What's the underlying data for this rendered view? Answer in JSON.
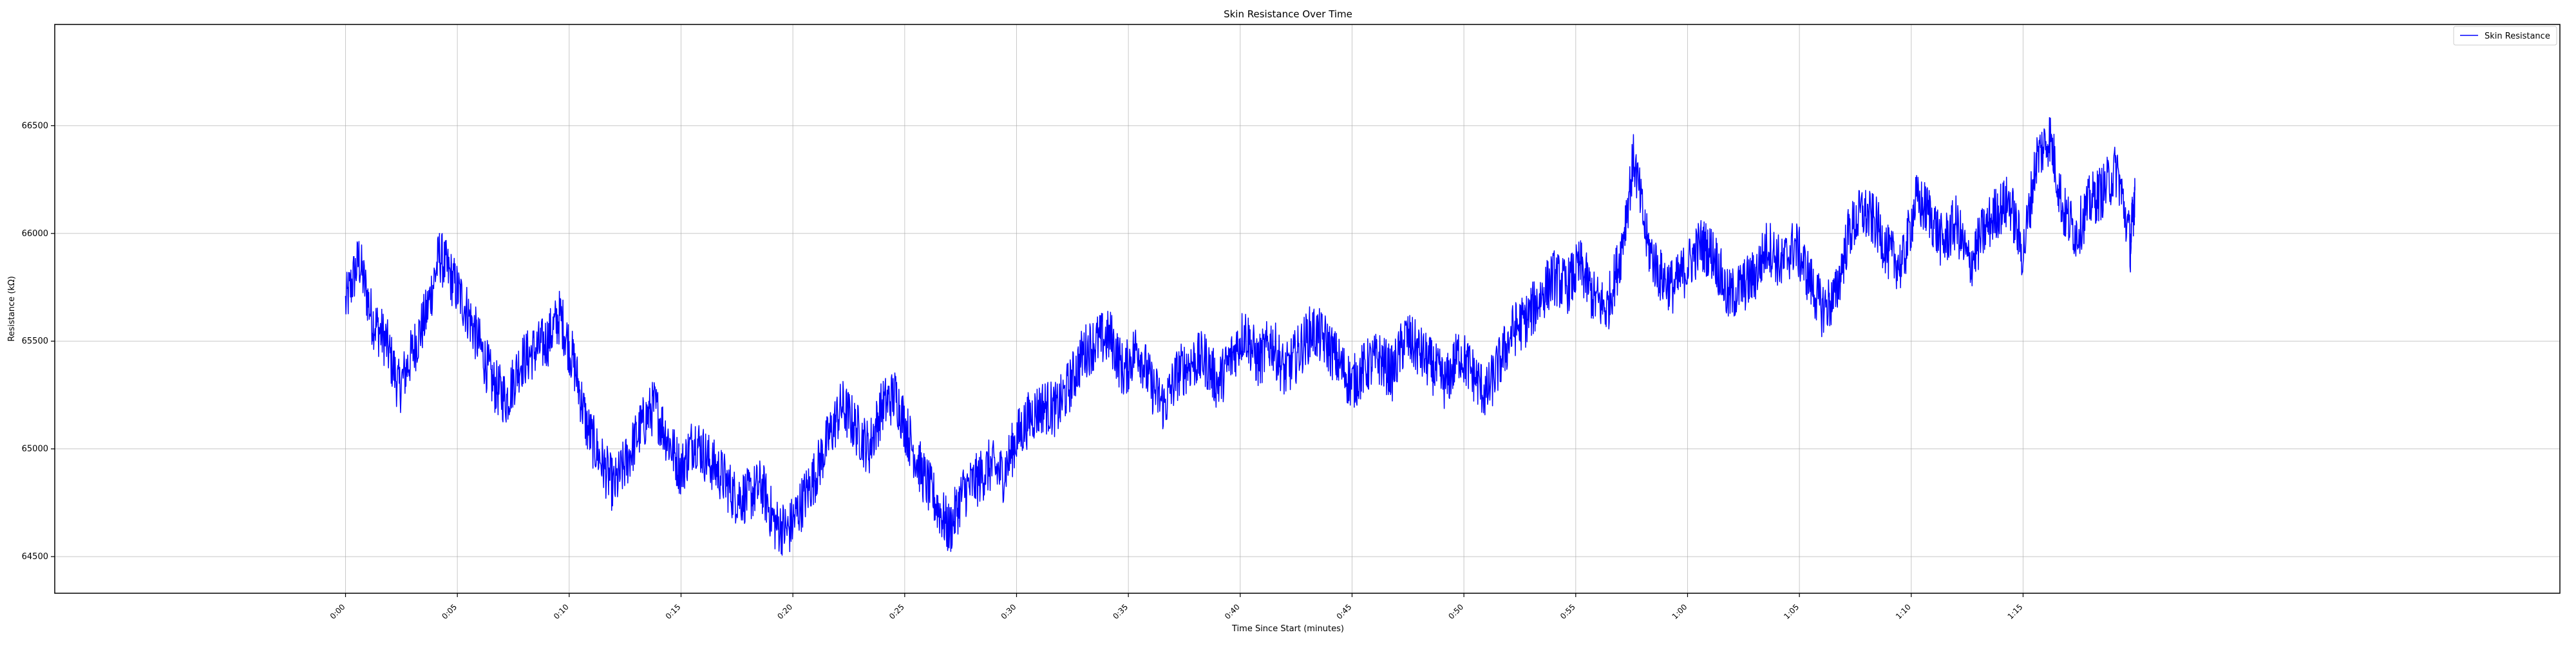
{
  "chart_data": {
    "type": "line",
    "title": "Skin Resistance Over Time",
    "xlabel": "Time Since Start (minutes)",
    "ylabel": "Resistance (kΩ)",
    "x_ticks": [
      "0:00",
      "0:05",
      "0:10",
      "0:15",
      "0:20",
      "0:25",
      "0:30",
      "0:35",
      "0:40",
      "0:45",
      "0:50",
      "0:55",
      "1:00",
      "1:05",
      "1:10",
      "1:15"
    ],
    "y_ticks": [
      64500,
      65000,
      65500,
      66000,
      66500
    ],
    "xlim": [
      -0.65,
      4.95
    ],
    "xlim_unit": "minutes",
    "ylim": [
      64330,
      66970
    ],
    "grid": true,
    "legend_position": "top-right",
    "series": [
      {
        "name": "Skin Resistance",
        "color": "#0000ff",
        "x_range": [
          0,
          4.0
        ],
        "x_unit": "minutes",
        "points": [
          [
            0.0,
            65670
          ],
          [
            0.03,
            65880
          ],
          [
            0.06,
            65600
          ],
          [
            0.09,
            65500
          ],
          [
            0.12,
            65280
          ],
          [
            0.15,
            65450
          ],
          [
            0.18,
            65620
          ],
          [
            0.21,
            65900
          ],
          [
            0.24,
            65780
          ],
          [
            0.27,
            65650
          ],
          [
            0.3,
            65480
          ],
          [
            0.33,
            65300
          ],
          [
            0.36,
            65230
          ],
          [
            0.39,
            65400
          ],
          [
            0.42,
            65450
          ],
          [
            0.45,
            65500
          ],
          [
            0.48,
            65620
          ],
          [
            0.51,
            65400
          ],
          [
            0.54,
            65100
          ],
          [
            0.57,
            64950
          ],
          [
            0.6,
            64820
          ],
          [
            0.63,
            64950
          ],
          [
            0.66,
            65100
          ],
          [
            0.69,
            65200
          ],
          [
            0.72,
            65050
          ],
          [
            0.75,
            64900
          ],
          [
            0.78,
            65050
          ],
          [
            0.81,
            64950
          ],
          [
            0.84,
            64880
          ],
          [
            0.87,
            64780
          ],
          [
            0.9,
            64780
          ],
          [
            0.93,
            64830
          ],
          [
            0.96,
            64650
          ],
          [
            0.99,
            64620
          ],
          [
            1.02,
            64750
          ],
          [
            1.05,
            64880
          ],
          [
            1.08,
            65050
          ],
          [
            1.11,
            65200
          ],
          [
            1.14,
            65100
          ],
          [
            1.17,
            65000
          ],
          [
            1.2,
            65200
          ],
          [
            1.23,
            65250
          ],
          [
            1.26,
            65050
          ],
          [
            1.29,
            64880
          ],
          [
            1.32,
            64750
          ],
          [
            1.35,
            64620
          ],
          [
            1.38,
            64800
          ],
          [
            1.41,
            64850
          ],
          [
            1.44,
            64920
          ],
          [
            1.47,
            64880
          ],
          [
            1.5,
            65050
          ],
          [
            1.53,
            65150
          ],
          [
            1.56,
            65200
          ],
          [
            1.59,
            65180
          ],
          [
            1.62,
            65300
          ],
          [
            1.65,
            65450
          ],
          [
            1.68,
            65500
          ],
          [
            1.71,
            65520
          ],
          [
            1.74,
            65350
          ],
          [
            1.77,
            65480
          ],
          [
            1.8,
            65300
          ],
          [
            1.83,
            65200
          ],
          [
            1.86,
            65350
          ],
          [
            1.89,
            65400
          ],
          [
            1.92,
            65420
          ],
          [
            1.95,
            65300
          ],
          [
            1.98,
            65420
          ],
          [
            2.01,
            65550
          ],
          [
            2.04,
            65400
          ],
          [
            2.07,
            65500
          ],
          [
            2.1,
            65350
          ],
          [
            2.13,
            65450
          ],
          [
            2.16,
            65550
          ],
          [
            2.19,
            65500
          ],
          [
            2.22,
            65400
          ],
          [
            2.25,
            65300
          ],
          [
            2.28,
            65380
          ],
          [
            2.31,
            65420
          ],
          [
            2.34,
            65350
          ],
          [
            2.37,
            65520
          ],
          [
            2.4,
            65450
          ],
          [
            2.43,
            65380
          ],
          [
            2.46,
            65300
          ],
          [
            2.49,
            65450
          ],
          [
            2.52,
            65350
          ],
          [
            2.55,
            65250
          ],
          [
            2.58,
            65400
          ],
          [
            2.61,
            65550
          ],
          [
            2.64,
            65600
          ],
          [
            2.67,
            65700
          ],
          [
            2.7,
            65800
          ],
          [
            2.73,
            65750
          ],
          [
            2.76,
            65850
          ],
          [
            2.79,
            65700
          ],
          [
            2.82,
            65650
          ],
          [
            2.85,
            65900
          ],
          [
            2.88,
            66350
          ],
          [
            2.91,
            65950
          ],
          [
            2.94,
            65800
          ],
          [
            2.97,
            65750
          ],
          [
            3.0,
            65850
          ],
          [
            3.03,
            65950
          ],
          [
            3.06,
            65900
          ],
          [
            3.09,
            65700
          ],
          [
            3.12,
            65750
          ],
          [
            3.15,
            65800
          ],
          [
            3.18,
            65950
          ],
          [
            3.21,
            65850
          ],
          [
            3.24,
            65950
          ],
          [
            3.27,
            65800
          ],
          [
            3.3,
            65650
          ],
          [
            3.33,
            65700
          ],
          [
            3.36,
            66000
          ],
          [
            3.39,
            66100
          ],
          [
            3.42,
            66050
          ],
          [
            3.45,
            65900
          ],
          [
            3.48,
            65850
          ],
          [
            3.51,
            66150
          ],
          [
            3.54,
            66100
          ],
          [
            3.57,
            65950
          ],
          [
            3.6,
            66050
          ],
          [
            3.63,
            65850
          ],
          [
            3.66,
            66000
          ],
          [
            3.69,
            66100
          ],
          [
            3.72,
            66150
          ],
          [
            3.75,
            65900
          ],
          [
            3.78,
            66350
          ],
          [
            3.81,
            66450
          ],
          [
            3.84,
            66100
          ],
          [
            3.87,
            66000
          ],
          [
            3.9,
            66150
          ],
          [
            3.93,
            66200
          ],
          [
            3.96,
            66300
          ],
          [
            3.99,
            65950
          ],
          [
            4.0,
            66200
          ]
        ]
      }
    ]
  }
}
